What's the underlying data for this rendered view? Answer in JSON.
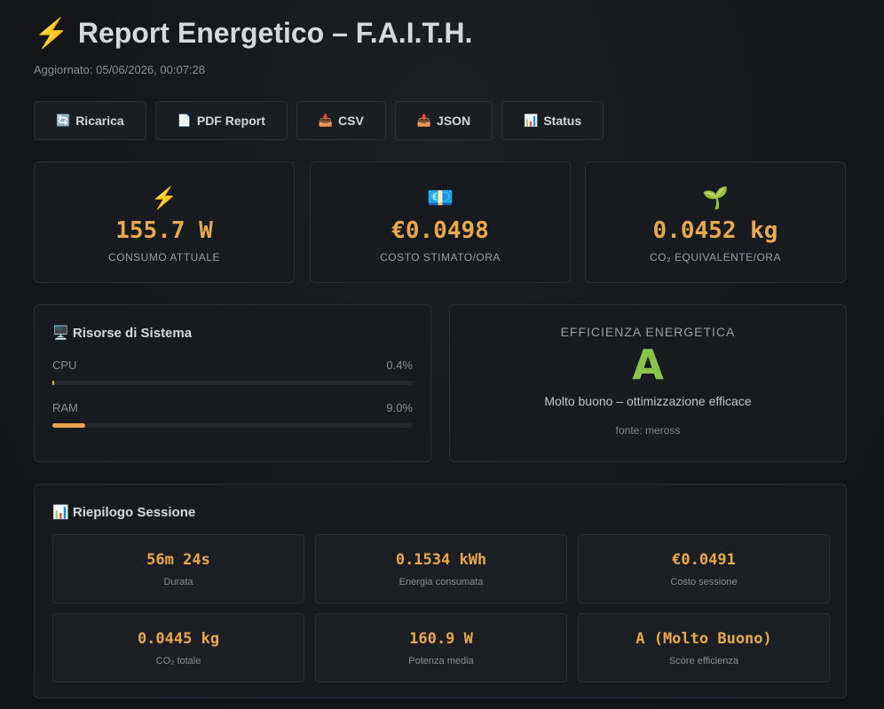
{
  "header": {
    "title": "Report Energetico – F.A.I.T.H.",
    "title_icon": "lightning-icon",
    "updated": "Aggiornato: 05/06/2026, 00:07:28"
  },
  "toolbar": [
    {
      "icon": "🔄",
      "label": "Ricarica",
      "name": "reload-button"
    },
    {
      "icon": "📄",
      "label": "PDF Report",
      "name": "pdf-report-button"
    },
    {
      "icon": "📥",
      "label": "CSV",
      "name": "csv-export-button"
    },
    {
      "icon": "📥",
      "label": "JSON",
      "name": "json-export-button"
    },
    {
      "icon": "📊",
      "label": "Status",
      "name": "status-button"
    }
  ],
  "stats": {
    "power": {
      "icon": "⚡",
      "value": "155.7 W",
      "label": "CONSUMO ATTUALE"
    },
    "cost": {
      "icon": "💶",
      "value": "€0.0498",
      "label": "COSTO STIMATO/ORA"
    },
    "co2": {
      "icon": "🌱",
      "value": "0.0452 kg",
      "label": "CO₂ EQUIVALENTE/ORA"
    }
  },
  "resources": {
    "title": "Risorse di Sistema",
    "icon": "🖥️",
    "cpu": {
      "label": "CPU",
      "value": "0.4%",
      "percent": 0.4
    },
    "ram": {
      "label": "RAM",
      "value": "9.0%",
      "percent": 9.0
    }
  },
  "efficiency": {
    "label": "EFFICIENZA ENERGETICA",
    "grade": "A",
    "description": "Molto buono – ottimizzazione efficace",
    "source": "fonte: meross",
    "grade_color": "#8bc34a"
  },
  "session": {
    "title": "Riepilogo Sessione",
    "icon": "📊",
    "items": [
      {
        "value": "56m 24s",
        "label": "Durata"
      },
      {
        "value": "0.1534 kWh",
        "label": "Energia consumata"
      },
      {
        "value": "€0.0491",
        "label": "Costo sessione"
      },
      {
        "value": "0.0445 kg",
        "label": "CO₂ totale"
      },
      {
        "value": "160.9 W",
        "label": "Potenza media"
      },
      {
        "value": "A (Molto Buono)",
        "label": "Score efficienza"
      }
    ]
  },
  "colors": {
    "accent": "#e9a84c",
    "background": "#141619",
    "card": "#171a1e"
  }
}
